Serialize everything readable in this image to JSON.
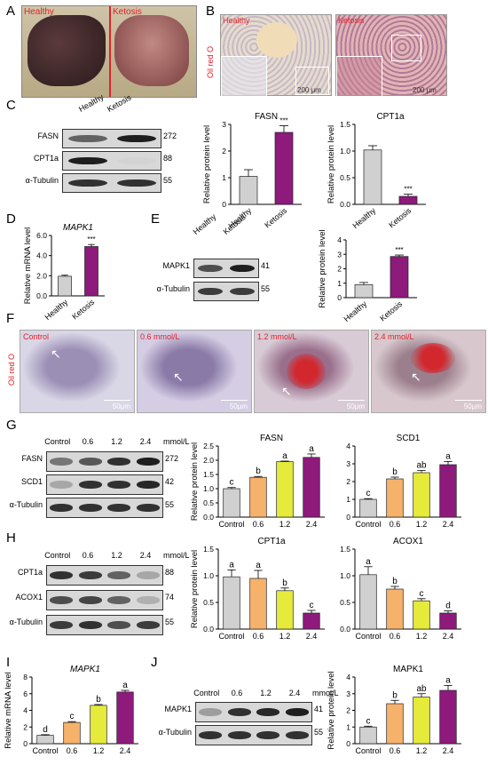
{
  "panels": {
    "A": {
      "letter": "A",
      "labels": [
        "Healthy",
        "Ketosis"
      ]
    },
    "B": {
      "letter": "B",
      "images": [
        {
          "label": "Healthy",
          "scale": "200 μm"
        },
        {
          "label": "Ketosis",
          "scale": "200 μm"
        }
      ],
      "stain": "Oil red O"
    },
    "C": {
      "letter": "C",
      "lanes": [
        "Healthy",
        "Ketosis"
      ],
      "bands": [
        {
          "name": "FASN",
          "kda": "272"
        },
        {
          "name": "CPT1a",
          "kda": "88"
        },
        {
          "name": "α-Tubulin",
          "kda": "55"
        }
      ]
    },
    "D": {
      "letter": "D"
    },
    "E": {
      "letter": "E",
      "lanes": [
        "Healthy",
        "Ketosis"
      ],
      "bands": [
        {
          "name": "MAPK1",
          "kda": "41"
        },
        {
          "name": "α-Tubulin",
          "kda": "55"
        }
      ]
    },
    "F": {
      "letter": "F",
      "stain": "Oil red O",
      "images": [
        {
          "label": "Control",
          "scale": "50μm"
        },
        {
          "label": "0.6 mmol/L",
          "scale": "50μm"
        },
        {
          "label": "1.2 mmol/L",
          "scale": "50μm"
        },
        {
          "label": "2.4 mmol/L",
          "scale": "50μm"
        }
      ]
    },
    "G": {
      "letter": "G",
      "lanes": [
        "Control",
        "0.6",
        "1.2",
        "2.4"
      ],
      "unit": "mmol/L",
      "bands": [
        {
          "name": "FASN",
          "kda": "272"
        },
        {
          "name": "SCD1",
          "kda": "42"
        },
        {
          "name": "α-Tubulin",
          "kda": "55"
        }
      ]
    },
    "H": {
      "letter": "H",
      "lanes": [
        "Control",
        "0.6",
        "1.2",
        "2.4"
      ],
      "unit": "mmol/L",
      "bands": [
        {
          "name": "CPT1a",
          "kda": "88"
        },
        {
          "name": "ACOX1",
          "kda": "74"
        },
        {
          "name": "α-Tubulin",
          "kda": "55"
        }
      ]
    },
    "I": {
      "letter": "I"
    },
    "J": {
      "letter": "J",
      "lanes": [
        "Control",
        "0.6",
        "1.2",
        "2.4"
      ],
      "unit": "mmol/L",
      "bands": [
        {
          "name": "MAPK1",
          "kda": "41"
        },
        {
          "name": "α-Tubulin",
          "kda": "55"
        }
      ]
    }
  },
  "colors": {
    "healthy": "#d0d0d0",
    "ketosis": "#8e1a7c",
    "control": "#d0d0d0",
    "c06": "#f6b26b",
    "c12": "#e6ea3a",
    "c24": "#8e1a7c",
    "label_red": "#e0222a"
  },
  "chart_data": [
    {
      "id": "B-FASN",
      "type": "bar",
      "title": "FASN",
      "ylabel": "Relative protein level",
      "categories": [
        "Healthy",
        "Ketosis"
      ],
      "values": [
        1.05,
        2.7
      ],
      "errors": [
        0.25,
        0.25
      ],
      "sig": [
        "",
        "***"
      ],
      "ylim": [
        0,
        3
      ],
      "yticks": [
        "0",
        "1",
        "2",
        "3"
      ]
    },
    {
      "id": "B-CPT1a",
      "type": "bar",
      "title": "CPT1a",
      "ylabel": "Relative protein level",
      "categories": [
        "Healthy",
        "Ketosis"
      ],
      "values": [
        1.02,
        0.15
      ],
      "errors": [
        0.08,
        0.04
      ],
      "sig": [
        "",
        "***"
      ],
      "ylim": [
        0,
        1.5
      ],
      "yticks": [
        "0.0",
        "0.5",
        "1.0",
        "1.5"
      ]
    },
    {
      "id": "D-MAPK1",
      "type": "bar",
      "title": "MAPK1",
      "ylabel": "Relative mRNA level",
      "categories": [
        "Healthy",
        "Ketosis"
      ],
      "values": [
        1.95,
        4.9
      ],
      "errors": [
        0.1,
        0.2
      ],
      "sig": [
        "",
        "***"
      ],
      "ylim": [
        0,
        6
      ],
      "yticks": [
        "0.0",
        "2.0",
        "4.0",
        "6.0"
      ]
    },
    {
      "id": "E-MAPK1",
      "type": "bar",
      "title": "",
      "ylabel": "Relative protein level",
      "categories": [
        "Healthy",
        "Ketosis"
      ],
      "values": [
        0.9,
        2.85
      ],
      "errors": [
        0.15,
        0.1
      ],
      "sig": [
        "",
        "***"
      ],
      "ylim": [
        0,
        4
      ],
      "yticks": [
        "0",
        "1",
        "2",
        "3",
        "4"
      ]
    },
    {
      "id": "G-FASN",
      "type": "bar",
      "title": "FASN",
      "ylabel": "Relative protein level",
      "categories": [
        "Control",
        "0.6",
        "1.2",
        "2.4"
      ],
      "values": [
        1.0,
        1.4,
        1.95,
        2.1
      ],
      "errors": [
        0.04,
        0.03,
        0.02,
        0.12
      ],
      "sig": [
        "c",
        "b",
        "a",
        "a"
      ],
      "ylim": [
        0,
        2.5
      ],
      "yticks": [
        "0.0",
        "0.5",
        "1.0",
        "1.5",
        "2.0",
        "2.5"
      ]
    },
    {
      "id": "G-SCD1",
      "type": "bar",
      "title": "SCD1",
      "ylabel": "",
      "categories": [
        "Control",
        "0.6",
        "1.2",
        "2.4"
      ],
      "values": [
        1.0,
        2.15,
        2.5,
        2.95
      ],
      "errors": [
        0.04,
        0.1,
        0.12,
        0.18
      ],
      "sig": [
        "c",
        "b",
        "ab",
        "a"
      ],
      "ylim": [
        0,
        4
      ],
      "yticks": [
        "0",
        "1",
        "2",
        "3",
        "4"
      ]
    },
    {
      "id": "H-CPT1a",
      "type": "bar",
      "title": "CPT1a",
      "ylabel": "Relative protein level",
      "categories": [
        "Control",
        "0.6",
        "1.2",
        "2.4"
      ],
      "values": [
        0.98,
        0.95,
        0.72,
        0.3
      ],
      "errors": [
        0.13,
        0.15,
        0.05,
        0.05
      ],
      "sig": [
        "a",
        "a",
        "b",
        "c"
      ],
      "ylim": [
        0,
        1.5
      ],
      "yticks": [
        "0.0",
        "0.5",
        "1.0",
        "1.5"
      ]
    },
    {
      "id": "H-ACOX1",
      "type": "bar",
      "title": "ACOX1",
      "ylabel": "",
      "categories": [
        "Control",
        "0.6",
        "1.2",
        "2.4"
      ],
      "values": [
        1.02,
        0.75,
        0.53,
        0.3
      ],
      "errors": [
        0.15,
        0.05,
        0.04,
        0.04
      ],
      "sig": [
        "a",
        "b",
        "c",
        "d"
      ],
      "ylim": [
        0,
        1.5
      ],
      "yticks": [
        "0.0",
        "0.5",
        "1.0",
        "1.5"
      ]
    },
    {
      "id": "I-MAPK1",
      "type": "bar",
      "title": "MAPK1",
      "ylabel": "Relative mRNA level",
      "categories": [
        "Control",
        "0.6",
        "1.2",
        "2.4"
      ],
      "values": [
        1.0,
        2.55,
        4.6,
        6.2
      ],
      "errors": [
        0.08,
        0.1,
        0.1,
        0.2
      ],
      "sig": [
        "d",
        "c",
        "b",
        "a"
      ],
      "ylim": [
        0,
        8
      ],
      "yticks": [
        "0",
        "2",
        "4",
        "6",
        "8"
      ]
    },
    {
      "id": "J-MAPK1",
      "type": "bar",
      "title": "MAPK1",
      "ylabel": "Relative protein level",
      "categories": [
        "Control",
        "0.6",
        "1.2",
        "2.4"
      ],
      "values": [
        1.0,
        2.4,
        2.8,
        3.2
      ],
      "errors": [
        0.05,
        0.2,
        0.2,
        0.3
      ],
      "sig": [
        "c",
        "b",
        "ab",
        "a"
      ],
      "ylim": [
        0,
        4
      ],
      "yticks": [
        "0",
        "1",
        "2",
        "3",
        "4"
      ]
    }
  ]
}
